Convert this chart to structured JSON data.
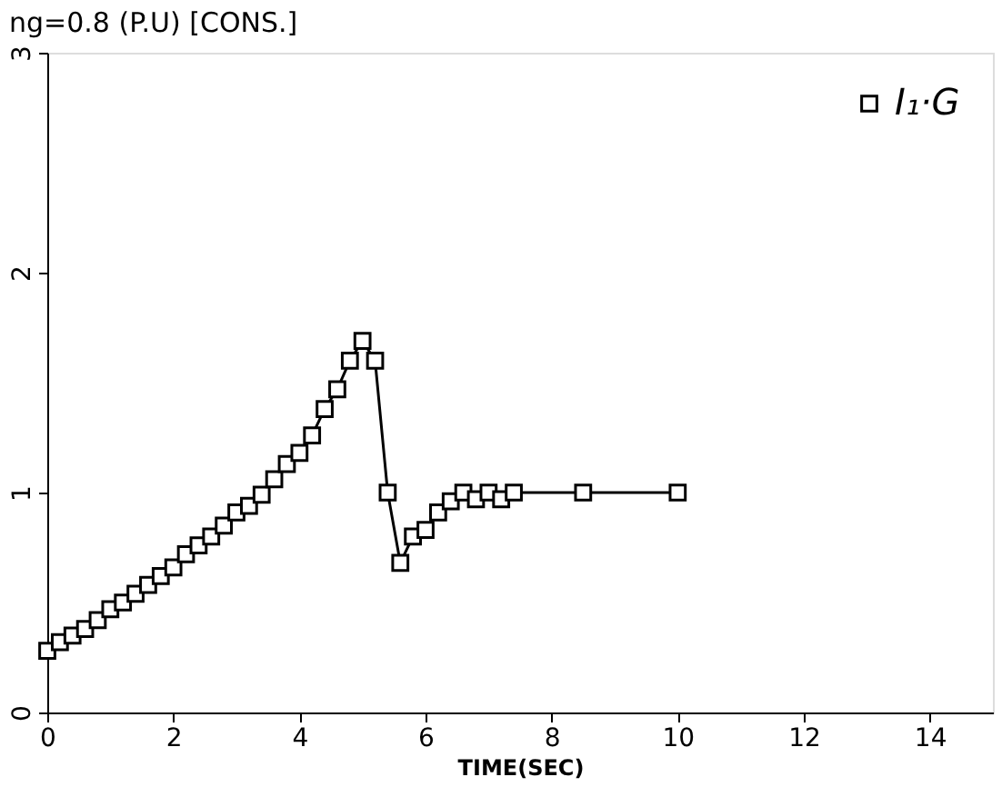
{
  "chart_data": {
    "type": "line",
    "title": "ng=0.8 (P.U) [CONS.]",
    "xlabel": "TIME(SEC)",
    "x": [
      0,
      0.2,
      0.4,
      0.6,
      0.8,
      1.0,
      1.2,
      1.4,
      1.6,
      1.8,
      2.0,
      2.2,
      2.4,
      2.6,
      2.8,
      3.0,
      3.2,
      3.4,
      3.6,
      3.8,
      4.0,
      4.2,
      4.4,
      4.6,
      4.8,
      5.0,
      5.2,
      5.4,
      5.6,
      5.8,
      6.0,
      6.2,
      6.4,
      6.6,
      6.8,
      7.0,
      7.2,
      7.4,
      8.5,
      10
    ],
    "series": [
      {
        "name": "I₁·G",
        "color": "#000000",
        "values": [
          0.28,
          0.32,
          0.35,
          0.38,
          0.42,
          0.47,
          0.5,
          0.54,
          0.58,
          0.62,
          0.66,
          0.72,
          0.76,
          0.8,
          0.85,
          0.91,
          0.94,
          0.99,
          1.06,
          1.13,
          1.18,
          1.26,
          1.38,
          1.47,
          1.6,
          1.69,
          1.6,
          1.0,
          0.68,
          0.8,
          0.83,
          0.91,
          0.96,
          1.0,
          0.97,
          1.0,
          0.97,
          1.0,
          1.0,
          1.0
        ]
      }
    ],
    "xlim": [
      0,
      15
    ],
    "xticks": [
      0,
      2,
      4,
      6,
      8,
      10,
      12,
      14
    ],
    "ylim": [
      0,
      3
    ],
    "yticks": [
      0,
      1,
      2,
      3
    ],
    "marker": "square",
    "line_style": "solid",
    "legend": "top right",
    "grid": false
  }
}
